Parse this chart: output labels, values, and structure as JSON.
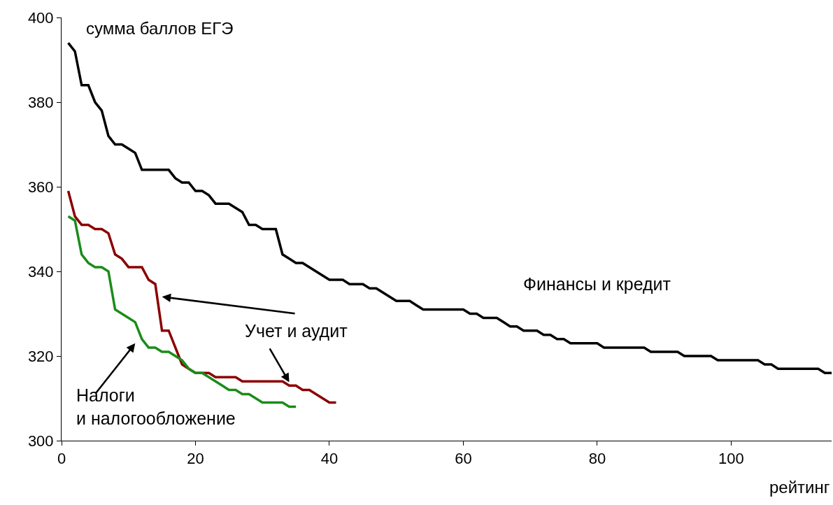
{
  "chart_data": {
    "type": "line",
    "ylabel": "сумма баллов ЕГЭ",
    "xlabel": "рейтинг",
    "xlim": [
      0,
      115
    ],
    "xticks": [
      0,
      20,
      40,
      60,
      80,
      100
    ],
    "ylim": [
      300,
      400
    ],
    "yticks": [
      300,
      320,
      340,
      360,
      380,
      400
    ],
    "grid": false,
    "legend": false,
    "marker": "none",
    "line_style": "solid",
    "series": [
      {
        "name": "Финансы и кредит",
        "color": "#000000",
        "x": [
          1,
          2,
          3,
          4,
          5,
          6,
          7,
          8,
          9,
          10,
          11,
          12,
          13,
          14,
          15,
          16,
          17,
          18,
          19,
          20,
          21,
          22,
          23,
          24,
          25,
          26,
          27,
          28,
          29,
          30,
          31,
          32,
          33,
          34,
          35,
          36,
          37,
          38,
          39,
          40,
          41,
          42,
          43,
          44,
          45,
          46,
          47,
          48,
          49,
          50,
          51,
          52,
          53,
          54,
          55,
          56,
          57,
          58,
          59,
          60,
          61,
          62,
          63,
          64,
          65,
          66,
          67,
          68,
          69,
          70,
          71,
          72,
          73,
          74,
          75,
          76,
          77,
          78,
          79,
          80,
          81,
          82,
          83,
          84,
          85,
          86,
          87,
          88,
          89,
          90,
          91,
          92,
          93,
          94,
          95,
          96,
          97,
          98,
          99,
          100,
          101,
          102,
          103,
          104,
          105,
          106,
          107,
          108,
          109,
          110,
          111,
          112,
          113,
          114,
          115
        ],
        "values": [
          394,
          392,
          384,
          384,
          380,
          378,
          372,
          370,
          370,
          369,
          368,
          364,
          364,
          364,
          364,
          364,
          362,
          361,
          361,
          359,
          359,
          358,
          356,
          356,
          356,
          355,
          354,
          351,
          351,
          350,
          350,
          350,
          344,
          343,
          342,
          342,
          341,
          340,
          339,
          338,
          338,
          338,
          337,
          337,
          337,
          336,
          336,
          335,
          334,
          333,
          333,
          333,
          332,
          331,
          331,
          331,
          331,
          331,
          331,
          331,
          330,
          330,
          329,
          329,
          329,
          328,
          327,
          327,
          326,
          326,
          326,
          325,
          325,
          324,
          324,
          323,
          323,
          323,
          323,
          323,
          322,
          322,
          322,
          322,
          322,
          322,
          322,
          321,
          321,
          321,
          321,
          321,
          320,
          320,
          320,
          320,
          320,
          319,
          319,
          319,
          319,
          319,
          319,
          319,
          318,
          318,
          317,
          317,
          317,
          317,
          317,
          317,
          317,
          316,
          316
        ]
      },
      {
        "name": "Учет и аудит",
        "color": "#8b0000",
        "x": [
          1,
          2,
          3,
          4,
          5,
          6,
          7,
          8,
          9,
          10,
          11,
          12,
          13,
          14,
          15,
          16,
          17,
          18,
          19,
          20,
          21,
          22,
          23,
          24,
          25,
          26,
          27,
          28,
          29,
          30,
          31,
          32,
          33,
          34,
          35,
          36,
          37,
          38,
          39,
          40,
          41
        ],
        "values": [
          359,
          353,
          351,
          351,
          350,
          350,
          349,
          344,
          343,
          341,
          341,
          341,
          338,
          337,
          326,
          326,
          322,
          318,
          317,
          316,
          316,
          316,
          315,
          315,
          315,
          315,
          314,
          314,
          314,
          314,
          314,
          314,
          314,
          313,
          313,
          312,
          312,
          311,
          310,
          309,
          309
        ]
      },
      {
        "name": "Налоги\nи налогообложение",
        "color": "#1a8c1a",
        "x": [
          1,
          2,
          3,
          4,
          5,
          6,
          7,
          8,
          9,
          10,
          11,
          12,
          13,
          14,
          15,
          16,
          17,
          18,
          19,
          20,
          21,
          22,
          23,
          24,
          25,
          26,
          27,
          28,
          29,
          30,
          31,
          32,
          33,
          34,
          35
        ],
        "values": [
          353,
          352,
          344,
          342,
          341,
          341,
          340,
          331,
          330,
          329,
          328,
          324,
          322,
          322,
          321,
          321,
          320,
          319,
          317,
          316,
          316,
          315,
          314,
          313,
          312,
          312,
          311,
          311,
          310,
          309,
          309,
          309,
          309,
          308,
          308
        ]
      }
    ]
  }
}
